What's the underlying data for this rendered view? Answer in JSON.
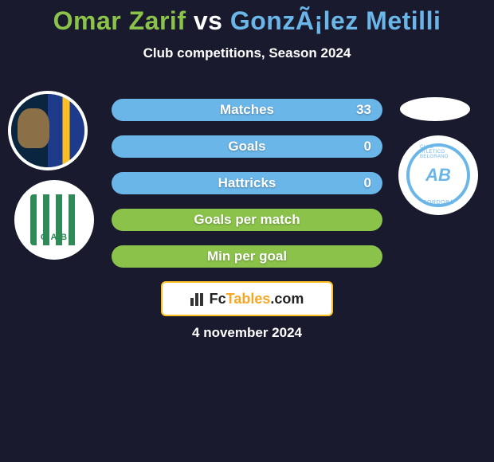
{
  "title": {
    "player1": "Omar Zarif",
    "vs": "vs",
    "player2": "GonzÃ¡lez Metilli",
    "player1_color": "#8bc34a",
    "vs_color": "#ffffff",
    "player2_color": "#6bb6e8"
  },
  "subtitle": "Club competitions, Season 2024",
  "stats": [
    {
      "label": "Matches",
      "value_left": null,
      "value_right": "33",
      "fill_pct": 100,
      "fill_color": "#6bb6e8",
      "empty_color": "#8bc34a"
    },
    {
      "label": "Goals",
      "value_left": null,
      "value_right": "0",
      "fill_pct": 100,
      "fill_color": "#6bb6e8",
      "empty_color": "#8bc34a"
    },
    {
      "label": "Hattricks",
      "value_left": null,
      "value_right": "0",
      "fill_pct": 100,
      "fill_color": "#6bb6e8",
      "empty_color": "#8bc34a"
    },
    {
      "label": "Goals per match",
      "value_left": null,
      "value_right": null,
      "fill_pct": 0,
      "fill_color": "#6bb6e8",
      "empty_color": "#8bc34a"
    },
    {
      "label": "Min per goal",
      "value_left": null,
      "value_right": null,
      "fill_pct": 0,
      "fill_color": "#6bb6e8",
      "empty_color": "#8bc34a"
    }
  ],
  "branding": {
    "text_prefix": "Fc",
    "text_main": "Tables",
    "text_suffix": ".com",
    "border_color": "#fbbf24",
    "accent_color": "#f5a623"
  },
  "date": "4 november 2024",
  "colors": {
    "background": "#1a1a2e",
    "text": "#ffffff"
  }
}
